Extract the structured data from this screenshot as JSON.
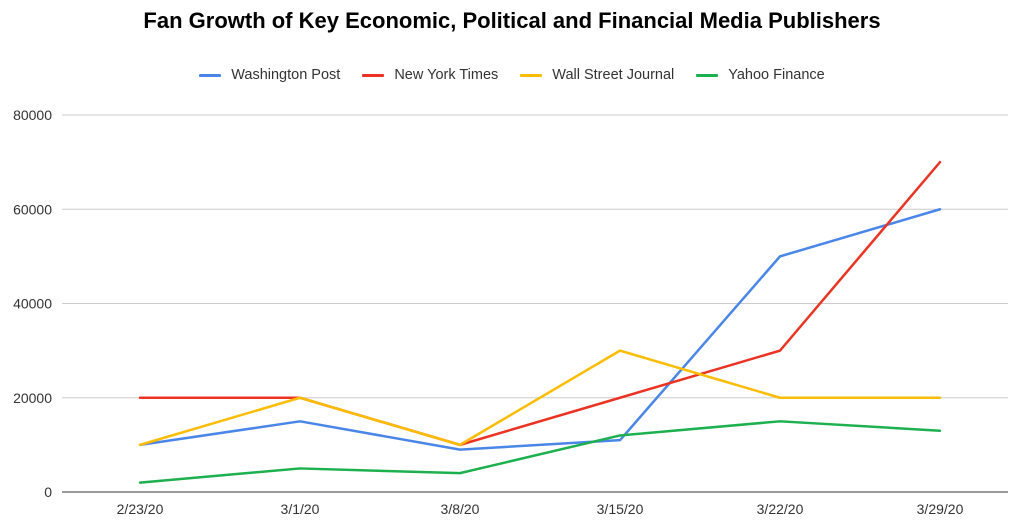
{
  "chart_data": {
    "type": "line",
    "title": "Fan Growth of Key Economic, Political and Financial Media Publishers",
    "xlabel": "",
    "ylabel": "",
    "categories": [
      "2/23/20",
      "3/1/20",
      "3/8/20",
      "3/15/20",
      "3/22/20",
      "3/29/20"
    ],
    "ylim": [
      0,
      80000
    ],
    "yticks": [
      0,
      20000,
      40000,
      60000,
      80000
    ],
    "grid": true,
    "legend_position": "top",
    "series": [
      {
        "name": "Washington Post",
        "color": "#4a86e8",
        "values": [
          10000,
          15000,
          9000,
          11000,
          50000,
          60000
        ]
      },
      {
        "name": "New York Times",
        "color": "#ea3323",
        "values": [
          20000,
          20000,
          10000,
          20000,
          30000,
          70000
        ]
      },
      {
        "name": "Wall Street Journal",
        "color": "#fbbc04",
        "values": [
          10000,
          20000,
          10000,
          30000,
          20000,
          20000
        ]
      },
      {
        "name": "Yahoo Finance",
        "color": "#1db04f",
        "values": [
          2000,
          5000,
          4000,
          12000,
          15000,
          13000
        ]
      }
    ]
  }
}
